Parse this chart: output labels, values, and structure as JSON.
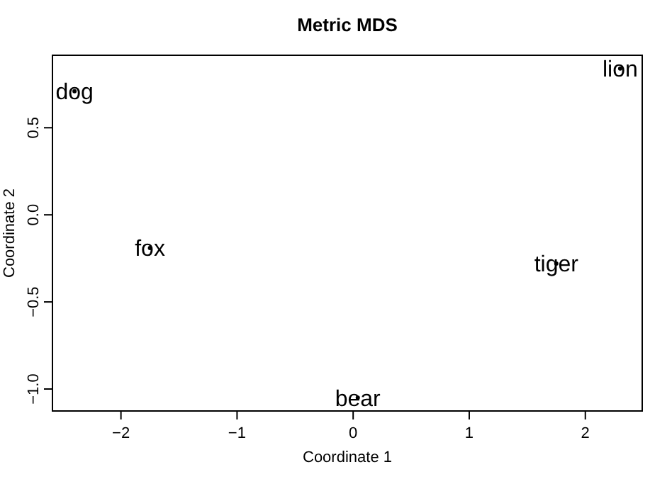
{
  "chart_data": {
    "type": "scatter",
    "title": "Metric MDS",
    "xlabel": "Coordinate 1",
    "ylabel": "Coordinate 2",
    "x": [
      -2.4,
      2.3,
      -1.75,
      1.75,
      0.04
    ],
    "values": [
      0.71,
      0.84,
      -0.19,
      -0.28,
      -1.05
    ],
    "value_labels": [
      "dog",
      "lion",
      "fox",
      "tiger",
      "bear"
    ],
    "marker": "circle",
    "color": "#000000",
    "xlim": [
      -2.59,
      2.49
    ],
    "ylim": [
      -1.126,
      0.916
    ],
    "xticks": [
      {
        "value": -2,
        "label": "−2"
      },
      {
        "value": -1,
        "label": "−1"
      },
      0,
      1,
      2
    ],
    "yticks": [
      {
        "value": -1,
        "label": "−1.0"
      },
      {
        "value": -0.5,
        "label": "−0.5"
      },
      {
        "value": 0,
        "label": "0.0"
      },
      0.5
    ],
    "grid": false
  }
}
